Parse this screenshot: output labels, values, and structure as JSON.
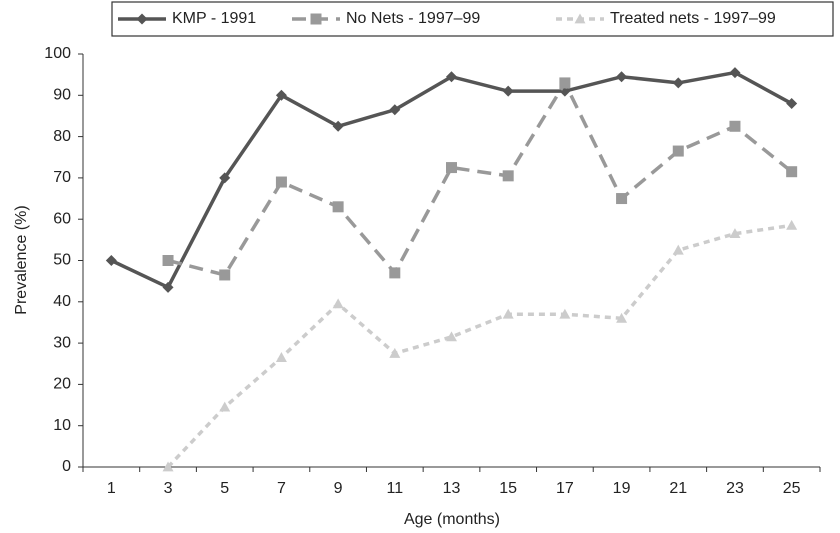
{
  "chart_data": {
    "type": "line",
    "x_label": "Age (months)",
    "y_label": "Prevalence (%)",
    "categories": [
      1,
      3,
      5,
      7,
      9,
      11,
      13,
      15,
      17,
      19,
      21,
      23,
      25
    ],
    "series": [
      {
        "name": "KMP - 1991",
        "color": "#555555",
        "dash": "solid",
        "marker": "diamond",
        "values": [
          50,
          43.5,
          70,
          90,
          82.5,
          86.5,
          94.5,
          91,
          91,
          94.5,
          93,
          95.5,
          88
        ]
      },
      {
        "name": "No Nets - 1997–99",
        "color": "#999999",
        "dash": "dashed",
        "marker": "square",
        "values": [
          null,
          50,
          46.5,
          69,
          63,
          47,
          72.5,
          70.5,
          93,
          65,
          76.5,
          82.5,
          71.5
        ]
      },
      {
        "name": "Treated nets - 1997–99",
        "color": "#cccccc",
        "dash": "dotted",
        "marker": "triangle",
        "values": [
          null,
          0,
          14.5,
          26.5,
          39.5,
          27.5,
          31.5,
          37,
          37,
          36,
          52.5,
          56.5,
          58.5
        ]
      }
    ],
    "ylim": [
      0,
      100
    ],
    "yticks": [
      0,
      10,
      20,
      30,
      40,
      50,
      60,
      70,
      80,
      90,
      100
    ],
    "grid": false
  }
}
